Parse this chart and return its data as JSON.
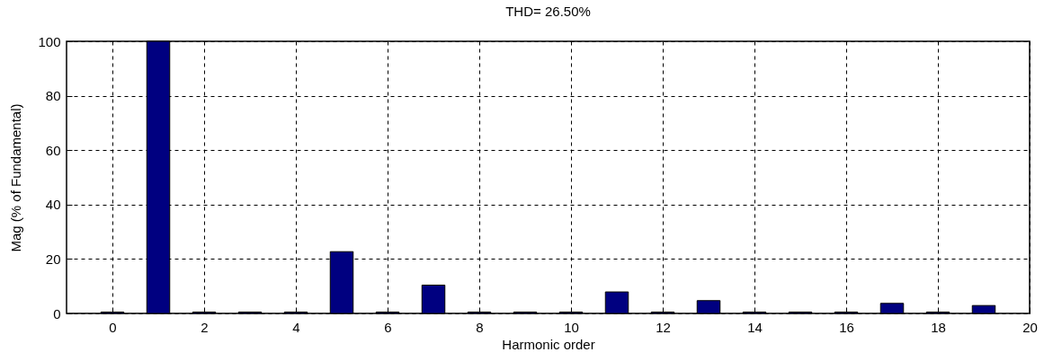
{
  "chart_data": {
    "type": "bar",
    "title": "THD= 26.50%",
    "xlabel": "Harmonic order",
    "ylabel": "Mag (% of Fundamental)",
    "x": [
      0,
      1,
      2,
      3,
      4,
      5,
      6,
      7,
      8,
      9,
      10,
      11,
      12,
      13,
      14,
      15,
      16,
      17,
      18,
      19
    ],
    "values": [
      0.5,
      100,
      0.5,
      0.5,
      0.5,
      22.7,
      0.5,
      10.4,
      0.5,
      0.5,
      0.5,
      7.9,
      0.5,
      4.7,
      0.5,
      0.5,
      0.5,
      3.7,
      0.5,
      2.9
    ],
    "color": "#000080",
    "xlim": [
      -1,
      20
    ],
    "xticks": [
      0,
      2,
      4,
      6,
      8,
      10,
      12,
      14,
      16,
      18,
      20
    ],
    "ylim": [
      0,
      100
    ],
    "yticks": [
      0,
      20,
      40,
      60,
      80,
      100
    ],
    "grid": true,
    "legend": false
  }
}
